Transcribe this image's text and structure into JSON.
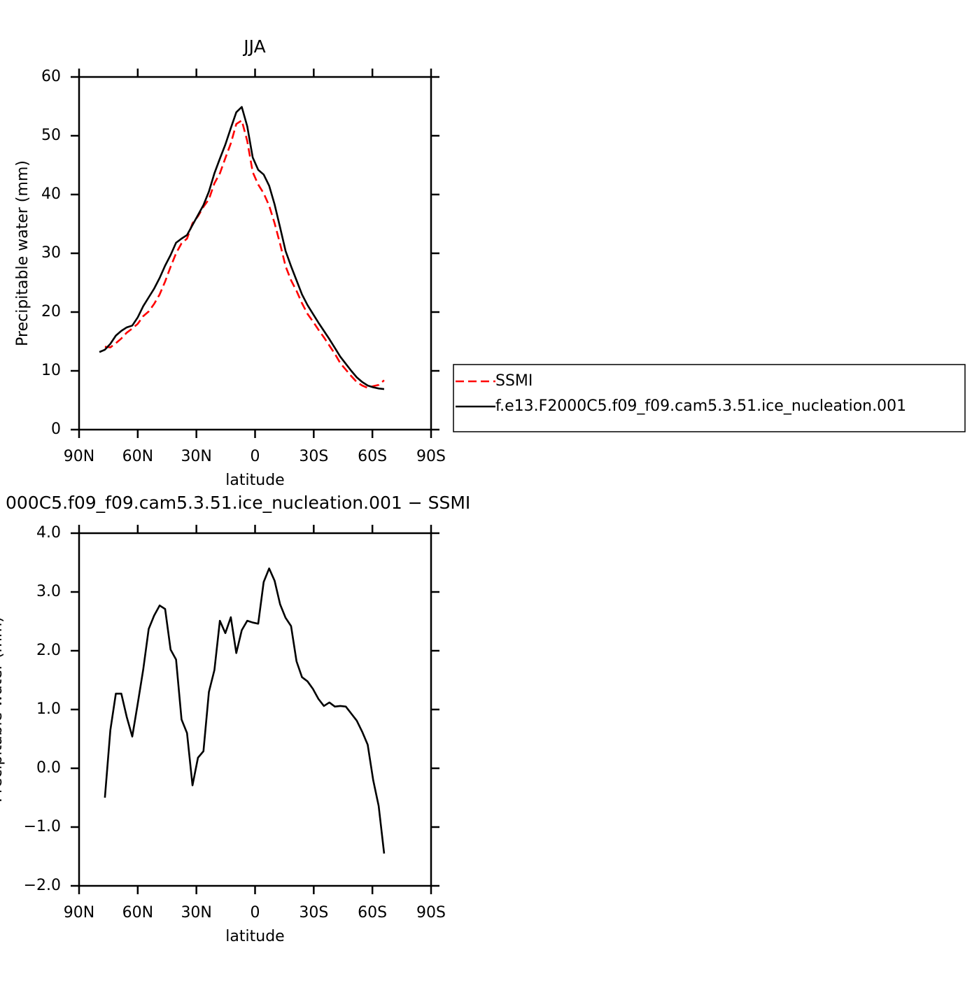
{
  "chart_data": [
    {
      "type": "line",
      "title": "JJA",
      "xlabel": "latitude",
      "ylabel": "Precipitable water (mm)",
      "x": [
        79.6,
        76.8,
        74.0,
        71.2,
        68.4,
        65.6,
        62.8,
        60.0,
        57.2,
        54.4,
        51.6,
        48.8,
        46.0,
        43.2,
        40.4,
        37.6,
        34.8,
        32.0,
        29.2,
        26.4,
        23.6,
        20.8,
        18.0,
        15.2,
        12.4,
        9.6,
        6.8,
        4.0,
        1.2,
        -1.6,
        -4.4,
        -7.2,
        -10.0,
        -12.8,
        -15.6,
        -18.4,
        -21.2,
        -24.0,
        -26.8,
        -29.6,
        -32.4,
        -35.2,
        -38.0,
        -40.8,
        -43.6,
        -46.4,
        -49.2,
        -52.0,
        -54.8,
        -57.6,
        -60.4,
        -63.2,
        -66.0
      ],
      "series": [
        {
          "name": "SSMI",
          "color": "#ff0000",
          "dashed": true,
          "values": [
            null,
            14.1,
            14.0,
            14.7,
            15.5,
            16.5,
            17.2,
            18.0,
            19.3,
            20.1,
            21.4,
            23.0,
            25.2,
            27.7,
            30.0,
            31.7,
            32.5,
            35.1,
            36.3,
            37.9,
            39.2,
            41.9,
            43.6,
            46.2,
            48.7,
            52.0,
            52.6,
            49.1,
            43.8,
            41.7,
            40.2,
            38.1,
            35.1,
            31.6,
            27.8,
            25.4,
            23.6,
            21.5,
            19.7,
            18.4,
            17.0,
            15.7,
            14.3,
            12.9,
            11.3,
            10.2,
            9.1,
            8.1,
            7.5,
            7.1,
            7.4,
            7.6,
            8.4
          ]
        },
        {
          "name": "f.e13.F2000C5.f09_f09.cam5.3.51.ice_nucleation.001",
          "color": "#000000",
          "dashed": false,
          "values": [
            13.2,
            13.6,
            14.6,
            16.0,
            16.8,
            17.4,
            17.7,
            19.1,
            21.0,
            22.5,
            24.0,
            25.8,
            27.9,
            29.7,
            31.8,
            32.5,
            33.1,
            34.8,
            36.5,
            38.2,
            40.5,
            43.6,
            46.1,
            48.5,
            51.3,
            54.0,
            54.9,
            51.6,
            46.3,
            44.2,
            43.4,
            41.5,
            38.3,
            34.4,
            30.4,
            27.8,
            25.4,
            23.0,
            21.2,
            19.7,
            18.2,
            16.8,
            15.4,
            13.9,
            12.4,
            11.2,
            10.0,
            8.9,
            8.1,
            7.5,
            7.2,
            7.0,
            6.9
          ]
        }
      ],
      "xlim": [
        90,
        -90
      ],
      "xticks": [
        {
          "value": 90,
          "label": "90N"
        },
        {
          "value": 60,
          "label": "60N"
        },
        {
          "value": 30,
          "label": "30N"
        },
        0,
        {
          "value": -30,
          "label": "30S"
        },
        {
          "value": -60,
          "label": "60S"
        },
        {
          "value": -90,
          "label": "90S"
        }
      ],
      "ylim": [
        0,
        60
      ],
      "yticks": [
        0,
        10,
        20,
        30,
        40,
        50,
        60
      ],
      "legend": "right"
    },
    {
      "type": "line",
      "title": "000C5.f09_f09.cam5.3.51.ice_nucleation.001 − SSMI",
      "xlabel": "latitude",
      "ylabel": "Precipitable water (mm)",
      "x": [
        76.8,
        74.0,
        71.2,
        68.4,
        65.6,
        62.8,
        60.0,
        57.2,
        54.4,
        51.6,
        48.8,
        46.0,
        43.2,
        40.4,
        37.6,
        34.8,
        32.0,
        29.2,
        26.4,
        23.6,
        20.8,
        18.0,
        15.2,
        12.4,
        9.6,
        6.8,
        4.0,
        1.2,
        -1.6,
        -4.4,
        -7.2,
        -10.0,
        -12.8,
        -15.6,
        -18.4,
        -21.2,
        -24.0,
        -26.8,
        -29.6,
        -32.4,
        -35.2,
        -38.0,
        -40.8,
        -43.6,
        -46.4,
        -49.2,
        -52.0,
        -54.8,
        -57.6,
        -60.4,
        -63.2,
        -66.0
      ],
      "series": [
        {
          "color": "#000000",
          "dashed": false,
          "values": [
            -0.5,
            0.65,
            1.27,
            1.27,
            0.87,
            0.54,
            1.1,
            1.68,
            2.37,
            2.6,
            2.77,
            2.71,
            2.02,
            1.85,
            0.83,
            0.6,
            -0.29,
            0.18,
            0.29,
            1.3,
            1.67,
            2.51,
            2.3,
            2.57,
            1.96,
            2.35,
            2.51,
            2.48,
            2.46,
            3.17,
            3.4,
            3.19,
            2.79,
            2.56,
            2.42,
            1.82,
            1.55,
            1.48,
            1.35,
            1.18,
            1.06,
            1.12,
            1.05,
            1.06,
            1.05,
            0.93,
            0.81,
            0.62,
            0.4,
            -0.2,
            -0.64,
            -1.45
          ]
        }
      ],
      "xlim": [
        90,
        -90
      ],
      "xticks": [
        {
          "value": 90,
          "label": "90N"
        },
        {
          "value": 60,
          "label": "60N"
        },
        {
          "value": 30,
          "label": "30N"
        },
        0,
        {
          "value": -30,
          "label": "30S"
        },
        {
          "value": -60,
          "label": "60S"
        },
        {
          "value": -90,
          "label": "90S"
        }
      ],
      "ylim": [
        -2,
        4
      ],
      "yticks": [
        {
          "value": -2,
          "label": "−2.0"
        },
        {
          "value": -1,
          "label": "−1.0"
        },
        {
          "value": 0,
          "label": "0.0"
        },
        {
          "value": 1,
          "label": "1.0"
        },
        {
          "value": 2,
          "label": "2.0"
        },
        {
          "value": 3,
          "label": "3.0"
        },
        {
          "value": 4,
          "label": "4.0"
        }
      ]
    }
  ]
}
